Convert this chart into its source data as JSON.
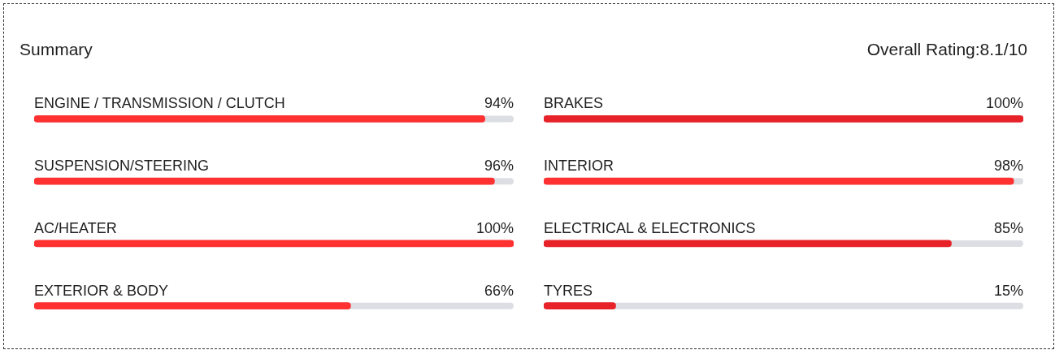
{
  "chart_data": [
    {
      "type": "bar",
      "orientation": "horizontal",
      "title": "Summary",
      "categories": [
        "ENGINE / TRANSMISSION / CLUTCH",
        "SUSPENSION/STEERING",
        "AC/HEATER",
        "EXTERIOR & BODY"
      ],
      "values": [
        94,
        96,
        100,
        66
      ],
      "colors": [
        "#ff3131",
        "#ff3131",
        "#ff3131",
        "#ff3131"
      ],
      "value_labels": [
        "94%",
        "96%",
        "100%",
        "66%"
      ],
      "xlim": [
        0,
        100
      ],
      "tick_labels": "y"
    },
    {
      "type": "bar",
      "orientation": "horizontal",
      "annotations": [
        "Overall Rating:8.1/10"
      ],
      "categories": [
        "BRAKES",
        "INTERIOR",
        "ELECTRICAL & ELECTRONICS",
        "TYRES"
      ],
      "values": [
        100,
        98,
        85,
        15
      ],
      "colors": [
        "#e82229",
        "#ff3131",
        "#e82229",
        "#e82229"
      ],
      "value_labels": [
        "100%",
        "98%",
        "85%",
        "15%"
      ],
      "xlim": [
        0,
        100
      ],
      "tick_labels": "y"
    }
  ]
}
